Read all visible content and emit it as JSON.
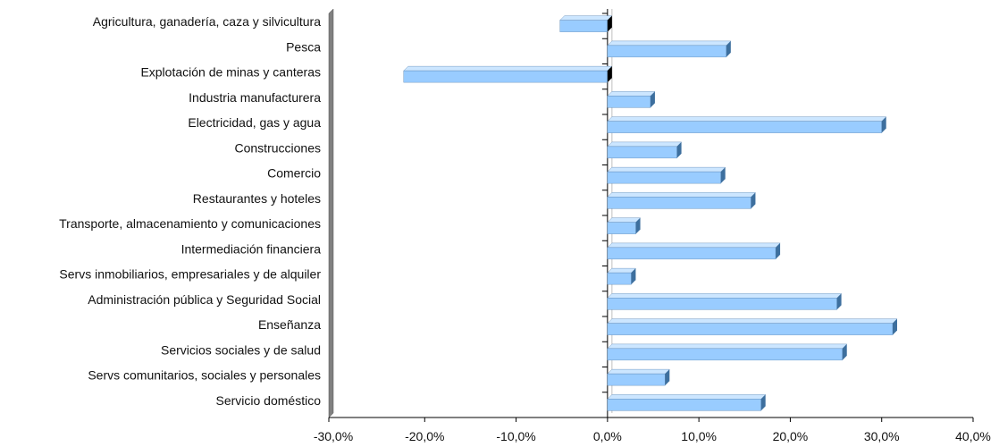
{
  "chart_data": {
    "type": "bar",
    "orientation": "horizontal",
    "categories": [
      "Agricultura, ganadería, caza y silvicultura",
      "Pesca",
      "Explotación de minas y canteras",
      "Industria manufacturera",
      "Electricidad, gas y agua",
      "Construcciones",
      "Comercio",
      "Restaurantes y hoteles",
      "Transporte, almacenamiento y comunicaciones",
      "Intermediación financiera",
      "Servs inmobiliarios, empresariales y de alquiler",
      "Administración pública y Seguridad Social",
      "Enseñanza",
      "Servicios sociales y de salud",
      "Servs comunitarios, sociales y personales",
      "Servicio doméstico"
    ],
    "values": [
      -5.2,
      13.0,
      -22.3,
      4.7,
      30.0,
      7.6,
      12.4,
      15.7,
      3.1,
      18.4,
      2.6,
      25.1,
      31.2,
      25.7,
      6.3,
      16.8
    ],
    "xlim": [
      -30,
      40
    ],
    "ticks": [
      -30,
      -20,
      -10,
      0,
      10,
      20,
      30,
      40
    ],
    "tick_labels": [
      "-30,0%",
      "-20,0%",
      "-10,0%",
      "0,0%",
      "10,0%",
      "20,0%",
      "30,0%",
      "40,0%"
    ],
    "title": "",
    "xlabel": "",
    "ylabel": "",
    "grid": false,
    "colors": {
      "bar_front": "#99ccff",
      "bar_top": "#cce6ff",
      "bar_side": "#3d6f9e",
      "wall": "#808080",
      "wall_face": "#b0b0b0",
      "axis": "#000000",
      "zero_line": "#c0c0c0"
    }
  }
}
